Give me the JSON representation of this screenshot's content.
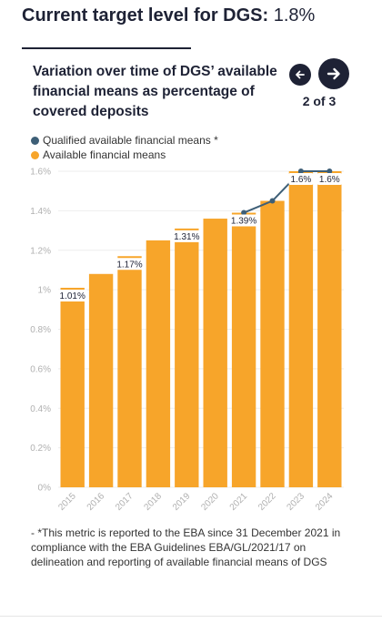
{
  "header": {
    "title": "Current target level for DGS:",
    "value": "1.8%"
  },
  "chart_nav": {
    "prev_icon": "arrow-left-icon",
    "next_icon": "arrow-right-icon",
    "position": "2 of 3"
  },
  "footnote": "- *This metric is reported to the EBA since 31 December 2021 in compliance with the EBA Guidelines EBA/GL/2021/17 on delineation and reporting of available financial means of DGS",
  "colors": {
    "bar": "#f7a52a",
    "line": "#3e5f77",
    "text_dark": "#1e2235"
  },
  "chart_data": {
    "type": "bar",
    "title": "Variation over time of DGS’ available financial means as percentage of covered deposits",
    "categories": [
      "2015",
      "2016",
      "2017",
      "2018",
      "2019",
      "2020",
      "2021",
      "2022",
      "2023",
      "2024"
    ],
    "series": [
      {
        "name": "Qualified available financial means *",
        "type": "line",
        "color": "#3e5f77",
        "values": [
          null,
          null,
          null,
          null,
          null,
          null,
          1.39,
          1.45,
          1.6,
          1.6
        ]
      },
      {
        "name": "Available financial means",
        "type": "bar",
        "color": "#f7a52a",
        "values": [
          1.01,
          1.08,
          1.17,
          1.25,
          1.31,
          1.36,
          1.39,
          1.45,
          1.6,
          1.6
        ]
      }
    ],
    "data_labels": [
      {
        "category": "2015",
        "text": "1.01%"
      },
      {
        "category": "2017",
        "text": "1.17%"
      },
      {
        "category": "2019",
        "text": "1.31%"
      },
      {
        "category": "2021",
        "text": "1.39%"
      },
      {
        "category": "2023",
        "text": "1.6%"
      },
      {
        "category": "2024",
        "text": "1.6%"
      }
    ],
    "y_ticks": [
      "0%",
      "0.2%",
      "0.4%",
      "0.6%",
      "0.8%",
      "1%",
      "1.2%",
      "1.4%",
      "1.6%"
    ],
    "ylim": [
      0,
      1.6
    ],
    "grid": true,
    "legend_position": "top-left"
  }
}
